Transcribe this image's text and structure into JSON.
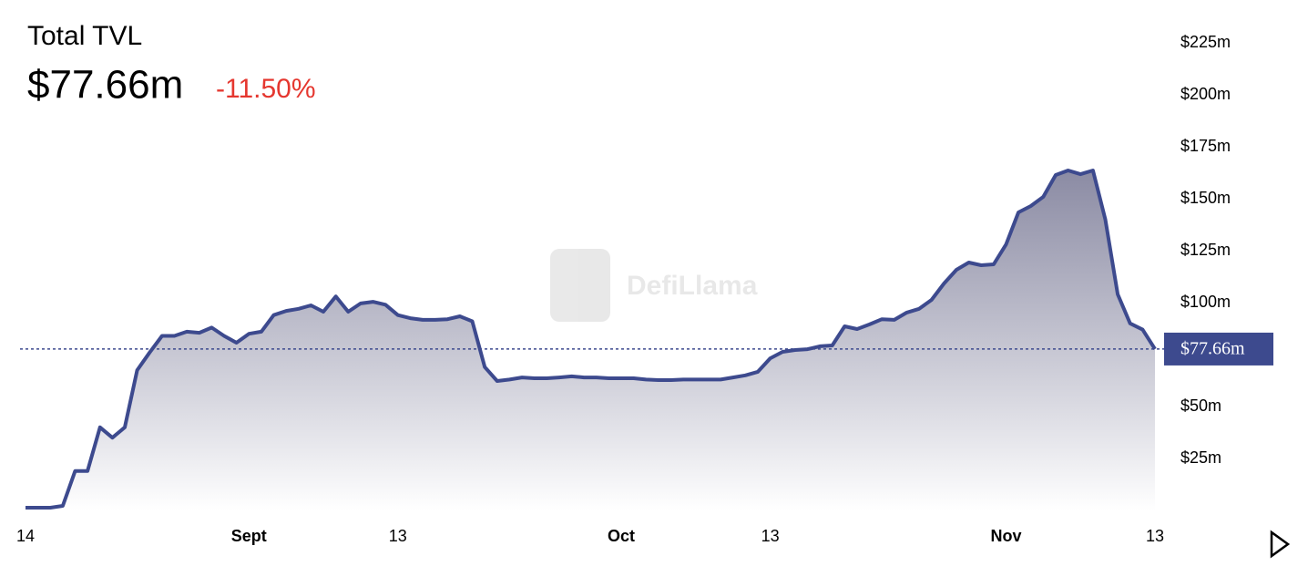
{
  "chart_data": {
    "type": "area",
    "title": "Total TVL",
    "current": {
      "value": 77.66,
      "label": "$77.66m"
    },
    "change": "-11.50%",
    "watermark": "DefiLlama",
    "x": [
      0,
      1,
      2,
      3,
      4,
      5,
      6,
      7,
      8,
      9,
      10,
      11,
      12,
      13,
      14,
      15,
      16,
      17,
      18,
      19,
      20,
      21,
      22,
      23,
      24,
      25,
      26,
      27,
      28,
      29,
      30,
      31,
      32,
      33,
      34,
      35,
      36,
      37,
      38,
      39,
      40,
      41,
      42,
      43,
      44,
      45,
      46,
      47,
      48,
      49,
      50,
      51,
      52,
      53,
      54,
      55,
      56,
      57,
      58,
      59,
      60,
      61,
      62,
      63,
      64,
      65,
      66,
      67,
      68,
      69,
      70,
      71,
      72,
      73,
      74,
      75,
      76,
      77,
      78,
      79,
      80,
      81,
      82,
      83,
      84,
      85,
      86,
      87,
      88,
      89,
      90,
      91
    ],
    "series": [
      {
        "name": "Total TVL",
        "color": "#3d4a8e",
        "values": [
          1.3,
          1.3,
          1.3,
          2.2,
          19,
          19,
          40,
          35,
          40,
          67.5,
          76,
          84,
          84,
          86,
          85.5,
          88,
          84,
          80.7,
          85,
          86,
          94,
          96,
          97,
          98.7,
          95.6,
          103,
          95.6,
          99.6,
          100.4,
          99,
          94,
          92.5,
          91.7,
          91.7,
          92,
          93.4,
          91,
          69,
          62.3,
          63,
          64,
          63.6,
          63.6,
          64,
          64.5,
          64,
          64,
          63.6,
          63.6,
          63.6,
          63,
          62.7,
          62.7,
          63,
          63,
          63,
          63,
          64,
          65,
          66.7,
          73.2,
          76.3,
          77.2,
          77.6,
          79,
          79.4,
          88.6,
          87.3,
          89.5,
          92,
          91.7,
          95.2,
          97,
          101.3,
          109.2,
          115.8,
          119.3,
          118,
          118.4,
          128,
          143.4,
          146.5,
          150.9,
          161.4,
          163.6,
          161.8,
          163.6,
          140,
          104,
          90,
          87,
          77.66
        ]
      }
    ],
    "xlim": [
      0,
      91
    ],
    "xticks": [
      {
        "value": 0,
        "label": "14"
      },
      {
        "value": 18,
        "label": "Sept"
      },
      {
        "value": 30,
        "label": "13"
      },
      {
        "value": 48,
        "label": "Oct"
      },
      {
        "value": 60,
        "label": "13"
      },
      {
        "value": 79,
        "label": "Nov"
      },
      {
        "value": 91,
        "label": "13"
      }
    ],
    "ylim": [
      0,
      225
    ],
    "yticks": [
      {
        "value": 25,
        "label": "$25m"
      },
      {
        "value": 50,
        "label": "$50m"
      },
      {
        "value": 100,
        "label": "$100m"
      },
      {
        "value": 125,
        "label": "$125m"
      },
      {
        "value": 150,
        "label": "$150m"
      },
      {
        "value": 175,
        "label": "$175m"
      },
      {
        "value": 200,
        "label": "$200m"
      },
      {
        "value": 225,
        "label": "$225m"
      }
    ],
    "grid": false
  }
}
